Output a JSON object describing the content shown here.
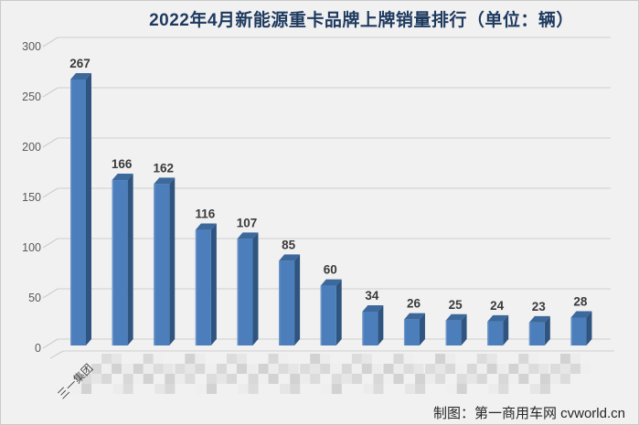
{
  "chart_data": {
    "type": "bar",
    "title": "2022年4月新能源重卡品牌上牌销量排行（单位：辆）",
    "categories": [
      "三一集团",
      "",
      "",
      "",
      "",
      "",
      "",
      "",
      "",
      "",
      "",
      "",
      ""
    ],
    "censored_category_indices": [
      1,
      2,
      3,
      4,
      5,
      6,
      7,
      8,
      9,
      10,
      11,
      12
    ],
    "values": [
      267,
      166,
      162,
      116,
      107,
      85,
      60,
      34,
      26,
      25,
      24,
      23,
      28
    ],
    "xlabel": "",
    "ylabel": "",
    "ylim": [
      0,
      300
    ],
    "yticks": [
      0,
      50,
      100,
      150,
      200,
      250,
      300
    ],
    "grid": true,
    "legend": false,
    "style": "3d-bar"
  },
  "watermark": {
    "credit": "制图：第一商用车网 cvworld.cn"
  },
  "colors": {
    "background": "#f1f1f1",
    "border": "#c9c9c9",
    "title": "#1e3a5f",
    "bar_front": "#4b7ebb",
    "bar_front_highlight": "#6e97c9",
    "bar_side": "#2e547f",
    "bar_top": "#3c689b",
    "grid": "#d7d7d7",
    "tick": "#c4c4c4",
    "axis_text": "#595959",
    "value_text": "#3a3a3a",
    "category_text": "#444444",
    "watermark_text": "#262626",
    "mosaic_dark": "#d2d2d2",
    "mosaic_light": "#ececec"
  }
}
